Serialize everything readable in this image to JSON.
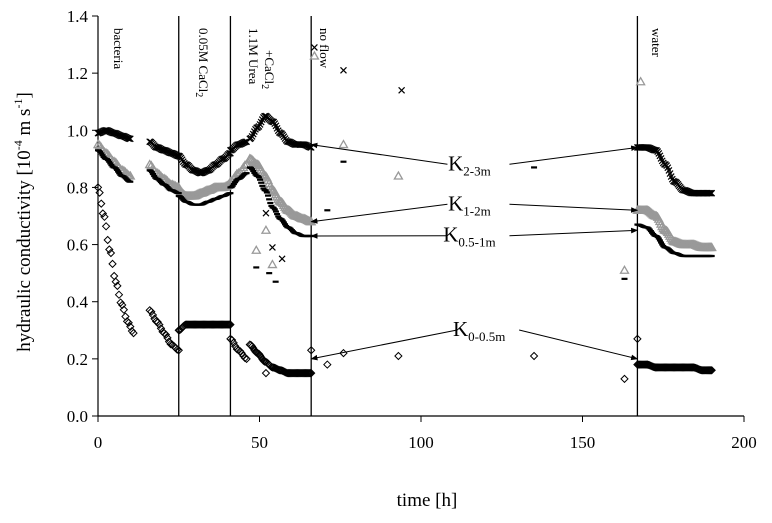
{
  "chart_data": {
    "type": "scatter",
    "xlabel": "time [h]",
    "ylabel_main": "hydraulic conductivity [10",
    "ylabel_exp": "-4",
    "ylabel_unit": " m s",
    "ylabel_unit_exp": "-1",
    "ylabel_end": "]",
    "xlim": [
      0,
      200
    ],
    "ylim": [
      0,
      1.4
    ],
    "xticks": [
      0,
      50,
      100,
      150,
      200
    ],
    "yticks": [
      "0.0",
      "0.2",
      "0.4",
      "0.6",
      "0.8",
      "1.0",
      "1.2",
      "1.4"
    ],
    "grid": false,
    "legend": "none",
    "phase_lines": [
      {
        "x": 25,
        "label_parts": [
          {
            "t": "0.05M CaCl"
          },
          {
            "t": "2",
            "sub": true
          }
        ]
      },
      {
        "x": 41,
        "label_parts": [
          {
            "t": "1.1M Urea"
          }
        ]
      },
      {
        "x": 66,
        "label_parts": []
      },
      {
        "x": 167,
        "label_parts": []
      }
    ],
    "phase_labels": {
      "bacteria": "bacteria",
      "cacl2": "0.05M CaCl",
      "cacl2_sub": "2",
      "urea": "1.1M Urea",
      "urea_cacl2": "+CaCl",
      "urea_cacl2_sub": "2",
      "noflow": "no flow",
      "water": "water"
    },
    "series": [
      {
        "label_main": "K",
        "label_sub": "2-3m",
        "marker": "x",
        "color": "#000000",
        "segments": [
          {
            "x0": 0,
            "x1": 10,
            "y": [
              0.99,
              1.0,
              0.99,
              0.98,
              0.97
            ]
          },
          {
            "x0": 16,
            "x1": 25,
            "y": [
              0.96,
              0.94,
              0.93,
              0.92,
              0.91
            ]
          },
          {
            "x0": 25,
            "x1": 41,
            "y": [
              0.91,
              0.88,
              0.86,
              0.85,
              0.86,
              0.88,
              0.9,
              0.92
            ]
          },
          {
            "x0": 41,
            "x1": 46,
            "y": [
              0.93,
              0.95,
              0.96
            ]
          },
          {
            "x0": 47,
            "x1": 66,
            "y": [
              0.97,
              1.01,
              1.05,
              1.03,
              0.99,
              0.96,
              0.95,
              0.95,
              0.94
            ]
          },
          {
            "x0": 167,
            "x1": 190,
            "y": [
              0.94,
              0.94,
              0.93,
              0.88,
              0.82,
              0.79,
              0.78,
              0.78,
              0.78
            ]
          }
        ],
        "points": [
          [
            67,
            1.29
          ],
          [
            76,
            1.21
          ],
          [
            94,
            1.14
          ],
          [
            52,
            0.71
          ],
          [
            54,
            0.59
          ],
          [
            57,
            0.55
          ]
        ]
      },
      {
        "label_main": "K",
        "label_sub": "1-2m",
        "marker": "triangle",
        "color": "#999999",
        "segments": [
          {
            "x0": 0,
            "x1": 10,
            "y": [
              0.95,
              0.92,
              0.89,
              0.86,
              0.84
            ]
          },
          {
            "x0": 16,
            "x1": 25,
            "y": [
              0.88,
              0.85,
              0.83,
              0.81,
              0.8
            ]
          },
          {
            "x0": 25,
            "x1": 41,
            "y": [
              0.79,
              0.77,
              0.77,
              0.78,
              0.79,
              0.8,
              0.8,
              0.81
            ]
          },
          {
            "x0": 41,
            "x1": 46,
            "y": [
              0.82,
              0.85,
              0.88
            ]
          },
          {
            "x0": 47,
            "x1": 66,
            "y": [
              0.9,
              0.88,
              0.84,
              0.79,
              0.75,
              0.72,
              0.7,
              0.69,
              0.68
            ]
          },
          {
            "x0": 167,
            "x1": 190,
            "y": [
              0.72,
              0.72,
              0.7,
              0.65,
              0.61,
              0.6,
              0.6,
              0.59,
              0.59
            ]
          }
        ],
        "points": [
          [
            67,
            1.26
          ],
          [
            76,
            0.95
          ],
          [
            93,
            0.84
          ],
          [
            163,
            0.51
          ],
          [
            168,
            1.17
          ],
          [
            49,
            0.58
          ],
          [
            52,
            0.65
          ],
          [
            54,
            0.53
          ]
        ]
      },
      {
        "label_main": "K",
        "label_sub": "0.5-1m",
        "marker": "dash",
        "color": "#000000",
        "segments": [
          {
            "x0": 0,
            "x1": 10,
            "y": [
              0.93,
              0.9,
              0.87,
              0.84,
              0.82
            ]
          },
          {
            "x0": 16,
            "x1": 25,
            "y": [
              0.86,
              0.83,
              0.81,
              0.79,
              0.78
            ]
          },
          {
            "x0": 25,
            "x1": 41,
            "y": [
              0.77,
              0.75,
              0.74,
              0.74,
              0.75,
              0.76,
              0.77,
              0.78
            ]
          },
          {
            "x0": 41,
            "x1": 46,
            "y": [
              0.8,
              0.83,
              0.85
            ]
          },
          {
            "x0": 47,
            "x1": 66,
            "y": [
              0.87,
              0.84,
              0.79,
              0.73,
              0.69,
              0.66,
              0.64,
              0.63,
              0.63
            ]
          },
          {
            "x0": 167,
            "x1": 190,
            "y": [
              0.67,
              0.66,
              0.63,
              0.59,
              0.57,
              0.56,
              0.56,
              0.56,
              0.56
            ]
          }
        ],
        "points": [
          [
            71,
            0.72
          ],
          [
            76,
            0.89
          ],
          [
            135,
            0.87
          ],
          [
            163,
            0.48
          ],
          [
            49,
            0.52
          ],
          [
            53,
            0.5
          ],
          [
            55,
            0.47
          ]
        ]
      },
      {
        "label_main": "K",
        "label_sub": "0-0.5m",
        "marker": "diamond",
        "color": "#000000",
        "segments": [
          {
            "x0": 0,
            "x1": 11,
            "y": [
              0.8,
              0.7,
              0.58,
              0.47,
              0.39,
              0.33,
              0.29
            ]
          },
          {
            "x0": 16,
            "x1": 25,
            "y": [
              0.37,
              0.33,
              0.29,
              0.25,
              0.23
            ]
          },
          {
            "x0": 25,
            "x1": 41,
            "y": [
              0.3,
              0.32,
              0.32,
              0.32,
              0.32,
              0.32,
              0.32,
              0.32
            ]
          },
          {
            "x0": 41,
            "x1": 46,
            "y": [
              0.27,
              0.23,
              0.2
            ]
          },
          {
            "x0": 47,
            "x1": 66,
            "y": [
              0.25,
              0.22,
              0.19,
              0.17,
              0.16,
              0.15,
              0.15,
              0.15,
              0.15
            ]
          },
          {
            "x0": 167,
            "x1": 190,
            "y": [
              0.18,
              0.18,
              0.17,
              0.17,
              0.17,
              0.17,
              0.17,
              0.16,
              0.16
            ]
          }
        ],
        "points": [
          [
            71,
            0.18
          ],
          [
            76,
            0.22
          ],
          [
            93,
            0.21
          ],
          [
            135,
            0.21
          ],
          [
            163,
            0.13
          ],
          [
            167,
            0.27
          ],
          [
            66,
            0.23
          ],
          [
            52,
            0.15
          ]
        ]
      }
    ],
    "annotations": [
      {
        "series": 0,
        "label_x": 115,
        "label_y": 0.86,
        "targets": [
          [
            66,
            0.95
          ],
          [
            167,
            0.94
          ]
        ]
      },
      {
        "series": 1,
        "label_x": 115,
        "label_y": 0.72,
        "targets": [
          [
            66,
            0.68
          ],
          [
            167,
            0.72
          ]
        ]
      },
      {
        "series": 2,
        "label_x": 115,
        "label_y": 0.61,
        "targets": [
          [
            66,
            0.63
          ],
          [
            167,
            0.65
          ]
        ]
      },
      {
        "series": 3,
        "label_x": 118,
        "label_y": 0.28,
        "targets": [
          [
            66,
            0.2
          ],
          [
            167,
            0.2
          ]
        ]
      }
    ]
  }
}
